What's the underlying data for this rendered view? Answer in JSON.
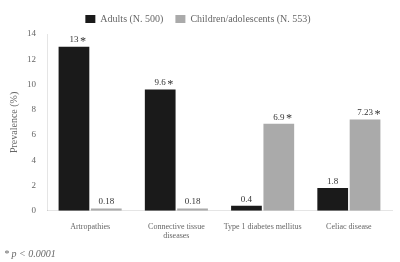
{
  "chart_data": {
    "type": "bar",
    "categories": [
      "Artropathies",
      "Connective tissue\ndiseases",
      "Type 1 diabetes mellitus",
      "Celiac disease"
    ],
    "series": [
      {
        "name": "Adults (N. 500)",
        "color": "#1a1a1a",
        "values": [
          13,
          9.6,
          0.4,
          1.8
        ]
      },
      {
        "name": "Children/adolescents (N. 553)",
        "color": "#aaaaaa",
        "values": [
          0.18,
          0.18,
          6.9,
          7.23
        ]
      }
    ],
    "ylabel": "Prevalence (%)",
    "ylim": [
      0,
      14
    ],
    "yticks": [
      0,
      2,
      4,
      6,
      8,
      10,
      12,
      14
    ],
    "grid": false,
    "legend": "top",
    "data_labels": true,
    "annotations": [
      {
        "text": "*",
        "category": "Artropathies",
        "series": "Adults (N. 500)"
      },
      {
        "text": "*",
        "category": "Connective tissue\ndiseases",
        "series": "Adults (N. 500)"
      },
      {
        "text": "*",
        "category": "Type 1 diabetes mellitus",
        "series": "Children/adolescents (N. 553)"
      },
      {
        "text": "*",
        "category": "Celiac disease",
        "series": "Children/adolescents (N. 553)"
      }
    ],
    "footnote": "* p < 0.0001"
  }
}
